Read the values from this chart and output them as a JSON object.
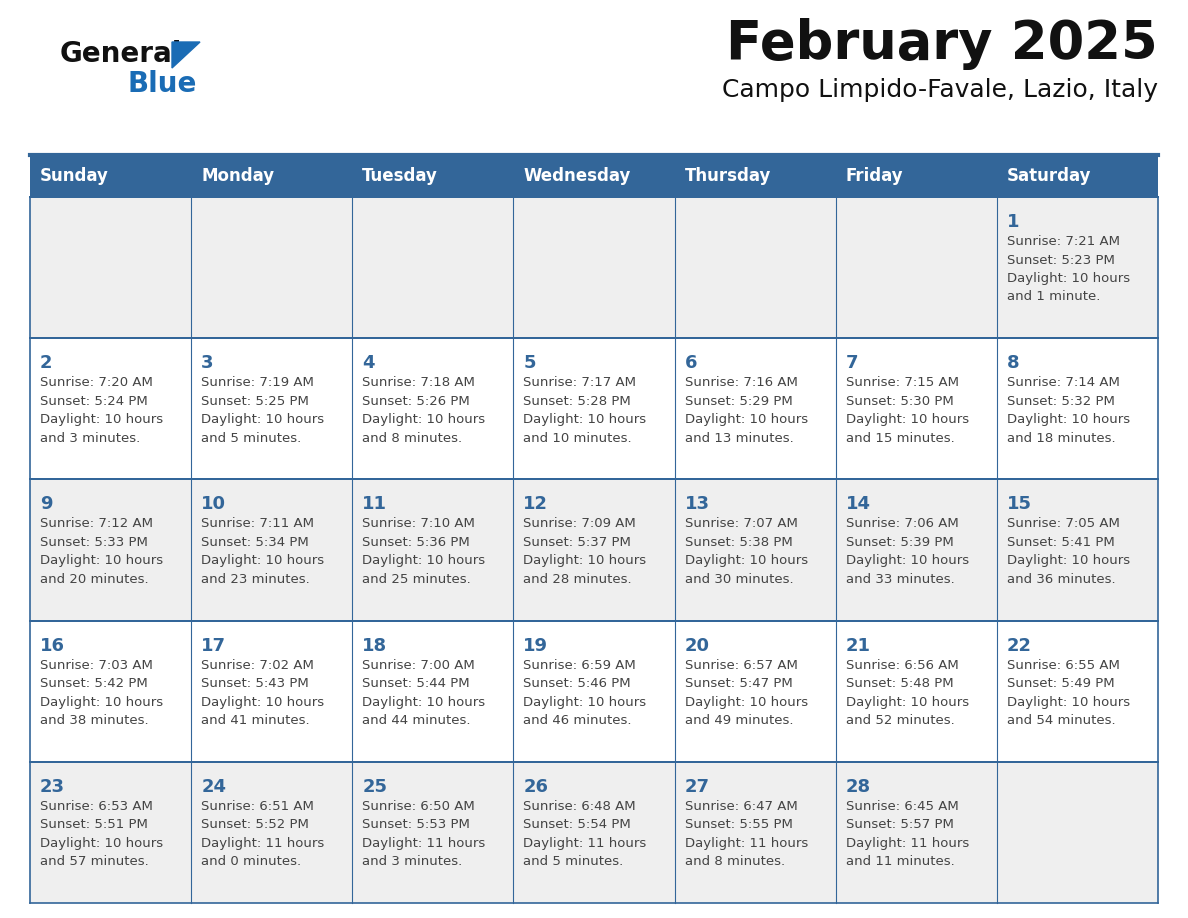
{
  "title": "February 2025",
  "subtitle": "Campo Limpido-Favale, Lazio, Italy",
  "days_of_week": [
    "Sunday",
    "Monday",
    "Tuesday",
    "Wednesday",
    "Thursday",
    "Friday",
    "Saturday"
  ],
  "header_bg": "#336699",
  "header_text": "#ffffff",
  "row_bg_odd": "#efefef",
  "row_bg_even": "#ffffff",
  "cell_border": "#336699",
  "day_number_color": "#336699",
  "info_text_color": "#444444",
  "title_color": "#111111",
  "subtitle_color": "#111111",
  "generalblue_black": "#111111",
  "generalblue_blue": "#1a6cb5",
  "logo_triangle_color": "#1a6cb5",
  "weeks": [
    {
      "days": [
        {
          "date": null,
          "info": ""
        },
        {
          "date": null,
          "info": ""
        },
        {
          "date": null,
          "info": ""
        },
        {
          "date": null,
          "info": ""
        },
        {
          "date": null,
          "info": ""
        },
        {
          "date": null,
          "info": ""
        },
        {
          "date": 1,
          "info": "Sunrise: 7:21 AM\nSunset: 5:23 PM\nDaylight: 10 hours\nand 1 minute."
        }
      ]
    },
    {
      "days": [
        {
          "date": 2,
          "info": "Sunrise: 7:20 AM\nSunset: 5:24 PM\nDaylight: 10 hours\nand 3 minutes."
        },
        {
          "date": 3,
          "info": "Sunrise: 7:19 AM\nSunset: 5:25 PM\nDaylight: 10 hours\nand 5 minutes."
        },
        {
          "date": 4,
          "info": "Sunrise: 7:18 AM\nSunset: 5:26 PM\nDaylight: 10 hours\nand 8 minutes."
        },
        {
          "date": 5,
          "info": "Sunrise: 7:17 AM\nSunset: 5:28 PM\nDaylight: 10 hours\nand 10 minutes."
        },
        {
          "date": 6,
          "info": "Sunrise: 7:16 AM\nSunset: 5:29 PM\nDaylight: 10 hours\nand 13 minutes."
        },
        {
          "date": 7,
          "info": "Sunrise: 7:15 AM\nSunset: 5:30 PM\nDaylight: 10 hours\nand 15 minutes."
        },
        {
          "date": 8,
          "info": "Sunrise: 7:14 AM\nSunset: 5:32 PM\nDaylight: 10 hours\nand 18 minutes."
        }
      ]
    },
    {
      "days": [
        {
          "date": 9,
          "info": "Sunrise: 7:12 AM\nSunset: 5:33 PM\nDaylight: 10 hours\nand 20 minutes."
        },
        {
          "date": 10,
          "info": "Sunrise: 7:11 AM\nSunset: 5:34 PM\nDaylight: 10 hours\nand 23 minutes."
        },
        {
          "date": 11,
          "info": "Sunrise: 7:10 AM\nSunset: 5:36 PM\nDaylight: 10 hours\nand 25 minutes."
        },
        {
          "date": 12,
          "info": "Sunrise: 7:09 AM\nSunset: 5:37 PM\nDaylight: 10 hours\nand 28 minutes."
        },
        {
          "date": 13,
          "info": "Sunrise: 7:07 AM\nSunset: 5:38 PM\nDaylight: 10 hours\nand 30 minutes."
        },
        {
          "date": 14,
          "info": "Sunrise: 7:06 AM\nSunset: 5:39 PM\nDaylight: 10 hours\nand 33 minutes."
        },
        {
          "date": 15,
          "info": "Sunrise: 7:05 AM\nSunset: 5:41 PM\nDaylight: 10 hours\nand 36 minutes."
        }
      ]
    },
    {
      "days": [
        {
          "date": 16,
          "info": "Sunrise: 7:03 AM\nSunset: 5:42 PM\nDaylight: 10 hours\nand 38 minutes."
        },
        {
          "date": 17,
          "info": "Sunrise: 7:02 AM\nSunset: 5:43 PM\nDaylight: 10 hours\nand 41 minutes."
        },
        {
          "date": 18,
          "info": "Sunrise: 7:00 AM\nSunset: 5:44 PM\nDaylight: 10 hours\nand 44 minutes."
        },
        {
          "date": 19,
          "info": "Sunrise: 6:59 AM\nSunset: 5:46 PM\nDaylight: 10 hours\nand 46 minutes."
        },
        {
          "date": 20,
          "info": "Sunrise: 6:57 AM\nSunset: 5:47 PM\nDaylight: 10 hours\nand 49 minutes."
        },
        {
          "date": 21,
          "info": "Sunrise: 6:56 AM\nSunset: 5:48 PM\nDaylight: 10 hours\nand 52 minutes."
        },
        {
          "date": 22,
          "info": "Sunrise: 6:55 AM\nSunset: 5:49 PM\nDaylight: 10 hours\nand 54 minutes."
        }
      ]
    },
    {
      "days": [
        {
          "date": 23,
          "info": "Sunrise: 6:53 AM\nSunset: 5:51 PM\nDaylight: 10 hours\nand 57 minutes."
        },
        {
          "date": 24,
          "info": "Sunrise: 6:51 AM\nSunset: 5:52 PM\nDaylight: 11 hours\nand 0 minutes."
        },
        {
          "date": 25,
          "info": "Sunrise: 6:50 AM\nSunset: 5:53 PM\nDaylight: 11 hours\nand 3 minutes."
        },
        {
          "date": 26,
          "info": "Sunrise: 6:48 AM\nSunset: 5:54 PM\nDaylight: 11 hours\nand 5 minutes."
        },
        {
          "date": 27,
          "info": "Sunrise: 6:47 AM\nSunset: 5:55 PM\nDaylight: 11 hours\nand 8 minutes."
        },
        {
          "date": 28,
          "info": "Sunrise: 6:45 AM\nSunset: 5:57 PM\nDaylight: 11 hours\nand 11 minutes."
        },
        {
          "date": null,
          "info": ""
        }
      ]
    }
  ]
}
